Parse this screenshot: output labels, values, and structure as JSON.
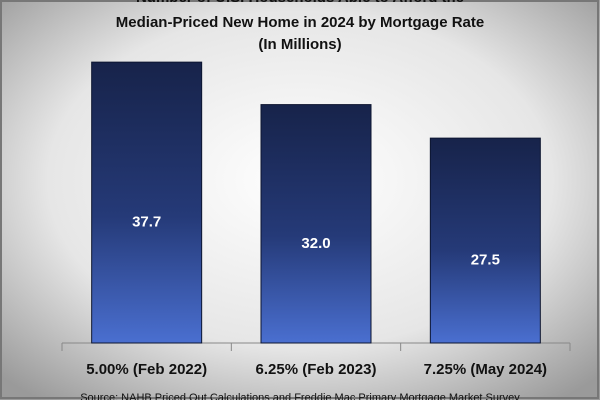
{
  "chart_data": {
    "type": "bar",
    "title": [
      "Number of U.S. Households Able to Afford the",
      "Median-Priced New Home in 2024 by Mortgage Rate",
      "(In Millions)"
    ],
    "categories": [
      "5.00% (Feb 2022)",
      "6.25% (Feb 2023)",
      "7.25% (May 2024)"
    ],
    "values": [
      37.7,
      32,
      27.5
    ],
    "value_labels": [
      "37.7",
      "32.0",
      "27.5"
    ],
    "color": "#17234a",
    "source": "Source: NAHB Priced Out Calculations and Freddie Mac Primary Mortgage Market Survey"
  }
}
